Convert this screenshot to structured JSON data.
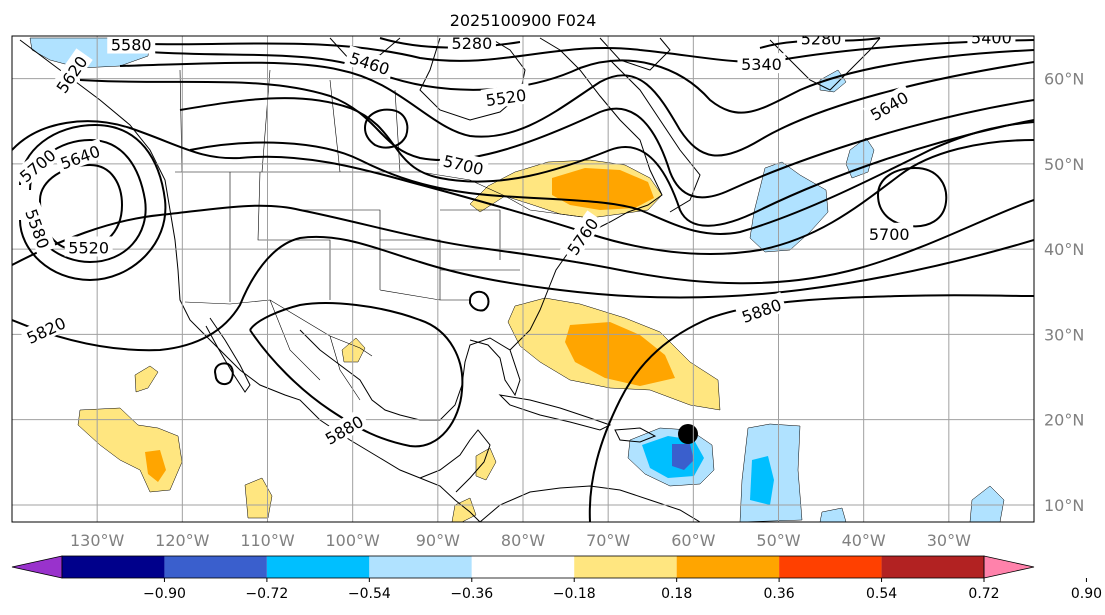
{
  "chart_data": {
    "type": "heatmap",
    "title": "2025100900 F024",
    "description_map": "map",
    "lon_range": [
      -140,
      -20
    ],
    "lat_range": [
      8,
      65
    ],
    "lon_ticks": [
      {
        "value": -130,
        "label": "130°W"
      },
      {
        "value": -120,
        "label": "120°W"
      },
      {
        "value": -110,
        "label": "110°W"
      },
      {
        "value": -100,
        "label": "100°W"
      },
      {
        "value": -90,
        "label": "90°W"
      },
      {
        "value": -80,
        "label": "80°W"
      },
      {
        "value": -70,
        "label": "70°W"
      },
      {
        "value": -60,
        "label": "60°W"
      },
      {
        "value": -50,
        "label": "50°W"
      },
      {
        "value": -40,
        "label": "40°W"
      },
      {
        "value": -30,
        "label": "30°W"
      }
    ],
    "lat_ticks": [
      {
        "value": 60,
        "label": "60°N"
      },
      {
        "value": 50,
        "label": "50°N"
      },
      {
        "value": 40,
        "label": "40°N"
      },
      {
        "value": 30,
        "label": "30°N"
      },
      {
        "value": 20,
        "label": "20°N"
      },
      {
        "value": 10,
        "label": "10°N"
      }
    ],
    "colorbar": {
      "levels": [
        "−0.90",
        "−0.72",
        "−0.54",
        "−0.36",
        "−0.18",
        "0.18",
        "0.36",
        "0.54",
        "0.72",
        "0.90"
      ],
      "colors": [
        "#9932cc",
        "#00008b",
        "#3a5fcd",
        "#00bfff",
        "#b0e2ff",
        "#ffffff",
        "#ffe680",
        "#ffa500",
        "#ff4000",
        "#b22222",
        "#ff82ab"
      ]
    },
    "contour_labels": [
      {
        "text": "5580",
        "lon": -126,
        "lat": 64.0,
        "rot": 0
      },
      {
        "text": "5280",
        "lon": -86,
        "lat": 64.2,
        "rot": 0
      },
      {
        "text": "5460",
        "lon": -98,
        "lat": 61.8,
        "rot": 18
      },
      {
        "text": "5520",
        "lon": -82,
        "lat": 57.8,
        "rot": -8
      },
      {
        "text": "5340",
        "lon": -52,
        "lat": 61.7,
        "rot": 0
      },
      {
        "text": "5280",
        "lon": -45,
        "lat": 64.7,
        "rot": 0
      },
      {
        "text": "5400",
        "lon": -25,
        "lat": 64.8,
        "rot": 0
      },
      {
        "text": "5640",
        "lon": -37,
        "lat": 56.8,
        "rot": -30
      },
      {
        "text": "5700",
        "lon": -87,
        "lat": 49.9,
        "rot": 13
      },
      {
        "text": "5700",
        "lon": -37,
        "lat": 41.8,
        "rot": 0
      },
      {
        "text": "5700",
        "lon": -137,
        "lat": 49.8,
        "rot": -40
      },
      {
        "text": "5640",
        "lon": -132,
        "lat": 50.8,
        "rot": -20
      },
      {
        "text": "5580",
        "lon": -137,
        "lat": 42.4,
        "rot": 70
      },
      {
        "text": "5520",
        "lon": -131,
        "lat": 40.2,
        "rot": 0
      },
      {
        "text": "5620",
        "lon": -133,
        "lat": 60.5,
        "rot": -55
      },
      {
        "text": "5760",
        "lon": -73,
        "lat": 41.5,
        "rot": -55
      },
      {
        "text": "5820",
        "lon": -136,
        "lat": 30.5,
        "rot": -25
      },
      {
        "text": "5880",
        "lon": -52,
        "lat": 32.8,
        "rot": -20
      },
      {
        "text": "5880",
        "lon": -101,
        "lat": 18.8,
        "rot": -30
      }
    ]
  }
}
